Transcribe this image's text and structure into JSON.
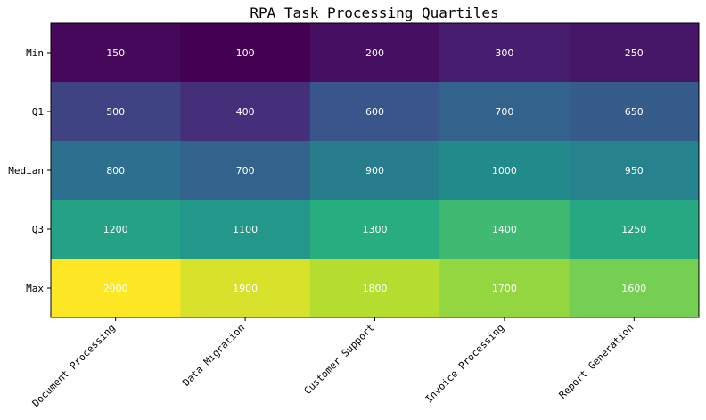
{
  "chart_data": {
    "type": "heatmap",
    "title": "RPA Task Processing Quartiles",
    "xlabel": "",
    "ylabel": "",
    "colormap": "viridis",
    "vmin": 100,
    "vmax": 2000,
    "columns": [
      "Document Processing",
      "Data Migration",
      "Customer Support",
      "Invoice Processing",
      "Report Generation"
    ],
    "rows": [
      "Min",
      "Q1",
      "Median",
      "Q3",
      "Max"
    ],
    "values": [
      [
        150,
        100,
        200,
        300,
        250
      ],
      [
        500,
        400,
        600,
        700,
        650
      ],
      [
        800,
        700,
        900,
        1000,
        950
      ],
      [
        1200,
        1100,
        1300,
        1400,
        1250
      ],
      [
        2000,
        1900,
        1800,
        1700,
        1600
      ]
    ],
    "grid": false,
    "legend": "none"
  }
}
